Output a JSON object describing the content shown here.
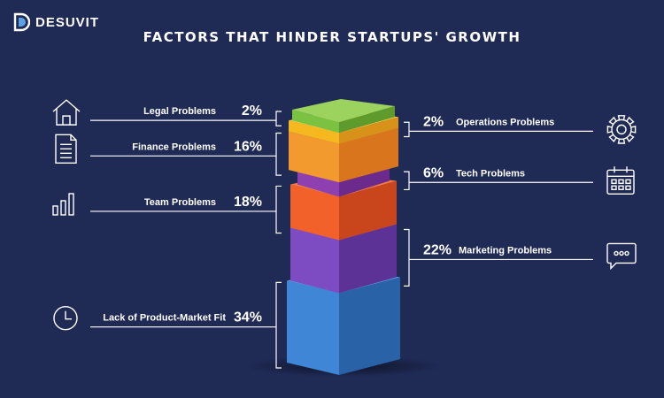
{
  "brand": {
    "name": "DESUVIT"
  },
  "colors": {
    "background": "#1f2a55",
    "line": "#ffffff"
  },
  "chart_data": {
    "type": "bar",
    "title": "FACTORS THAT HINDER STARTUPS' GROWTH",
    "unit": "%",
    "items": [
      {
        "label": "Legal Problems",
        "value": 2,
        "display": "2%",
        "side": "left",
        "icon": "house-icon",
        "color": "#7cc242",
        "color_dark": "#5e9a2c",
        "color_top": "#9bd35e"
      },
      {
        "label": "Operations Problems",
        "value": 2,
        "display": "2%",
        "side": "right",
        "icon": "gear-icon",
        "color": "#f5b81e",
        "color_dark": "#d8921a",
        "color_top": "#ffd24d"
      },
      {
        "label": "Finance Problems",
        "value": 16,
        "display": "16%",
        "side": "left",
        "icon": "document-icon",
        "color": "#f39a2e",
        "color_dark": "#d9751c",
        "color_top": "#f7ae4b"
      },
      {
        "label": "Tech Problems",
        "value": 6,
        "display": "6%",
        "side": "right",
        "icon": "calendar-icon",
        "color": "#8e3fb0",
        "color_dark": "#6c2a8c",
        "color_top": "#a359c4"
      },
      {
        "label": "Team Problems",
        "value": 18,
        "display": "18%",
        "side": "left",
        "icon": "bar-chart-icon",
        "color": "#f2612a",
        "color_dark": "#c9461c",
        "color_top": "#f57a45"
      },
      {
        "label": "Marketing Problems",
        "value": 22,
        "display": "22%",
        "side": "right",
        "icon": "speech-bubble-icon",
        "color": "#7e4cc2",
        "color_dark": "#5c3296",
        "color_top": "#9466d6"
      },
      {
        "label": "Lack of Product-Market Fit",
        "value": 34,
        "display": "34%",
        "side": "left",
        "icon": "clock-icon",
        "color": "#3f87d6",
        "color_dark": "#2a62a8",
        "color_top": "#5aa1e6"
      }
    ]
  }
}
